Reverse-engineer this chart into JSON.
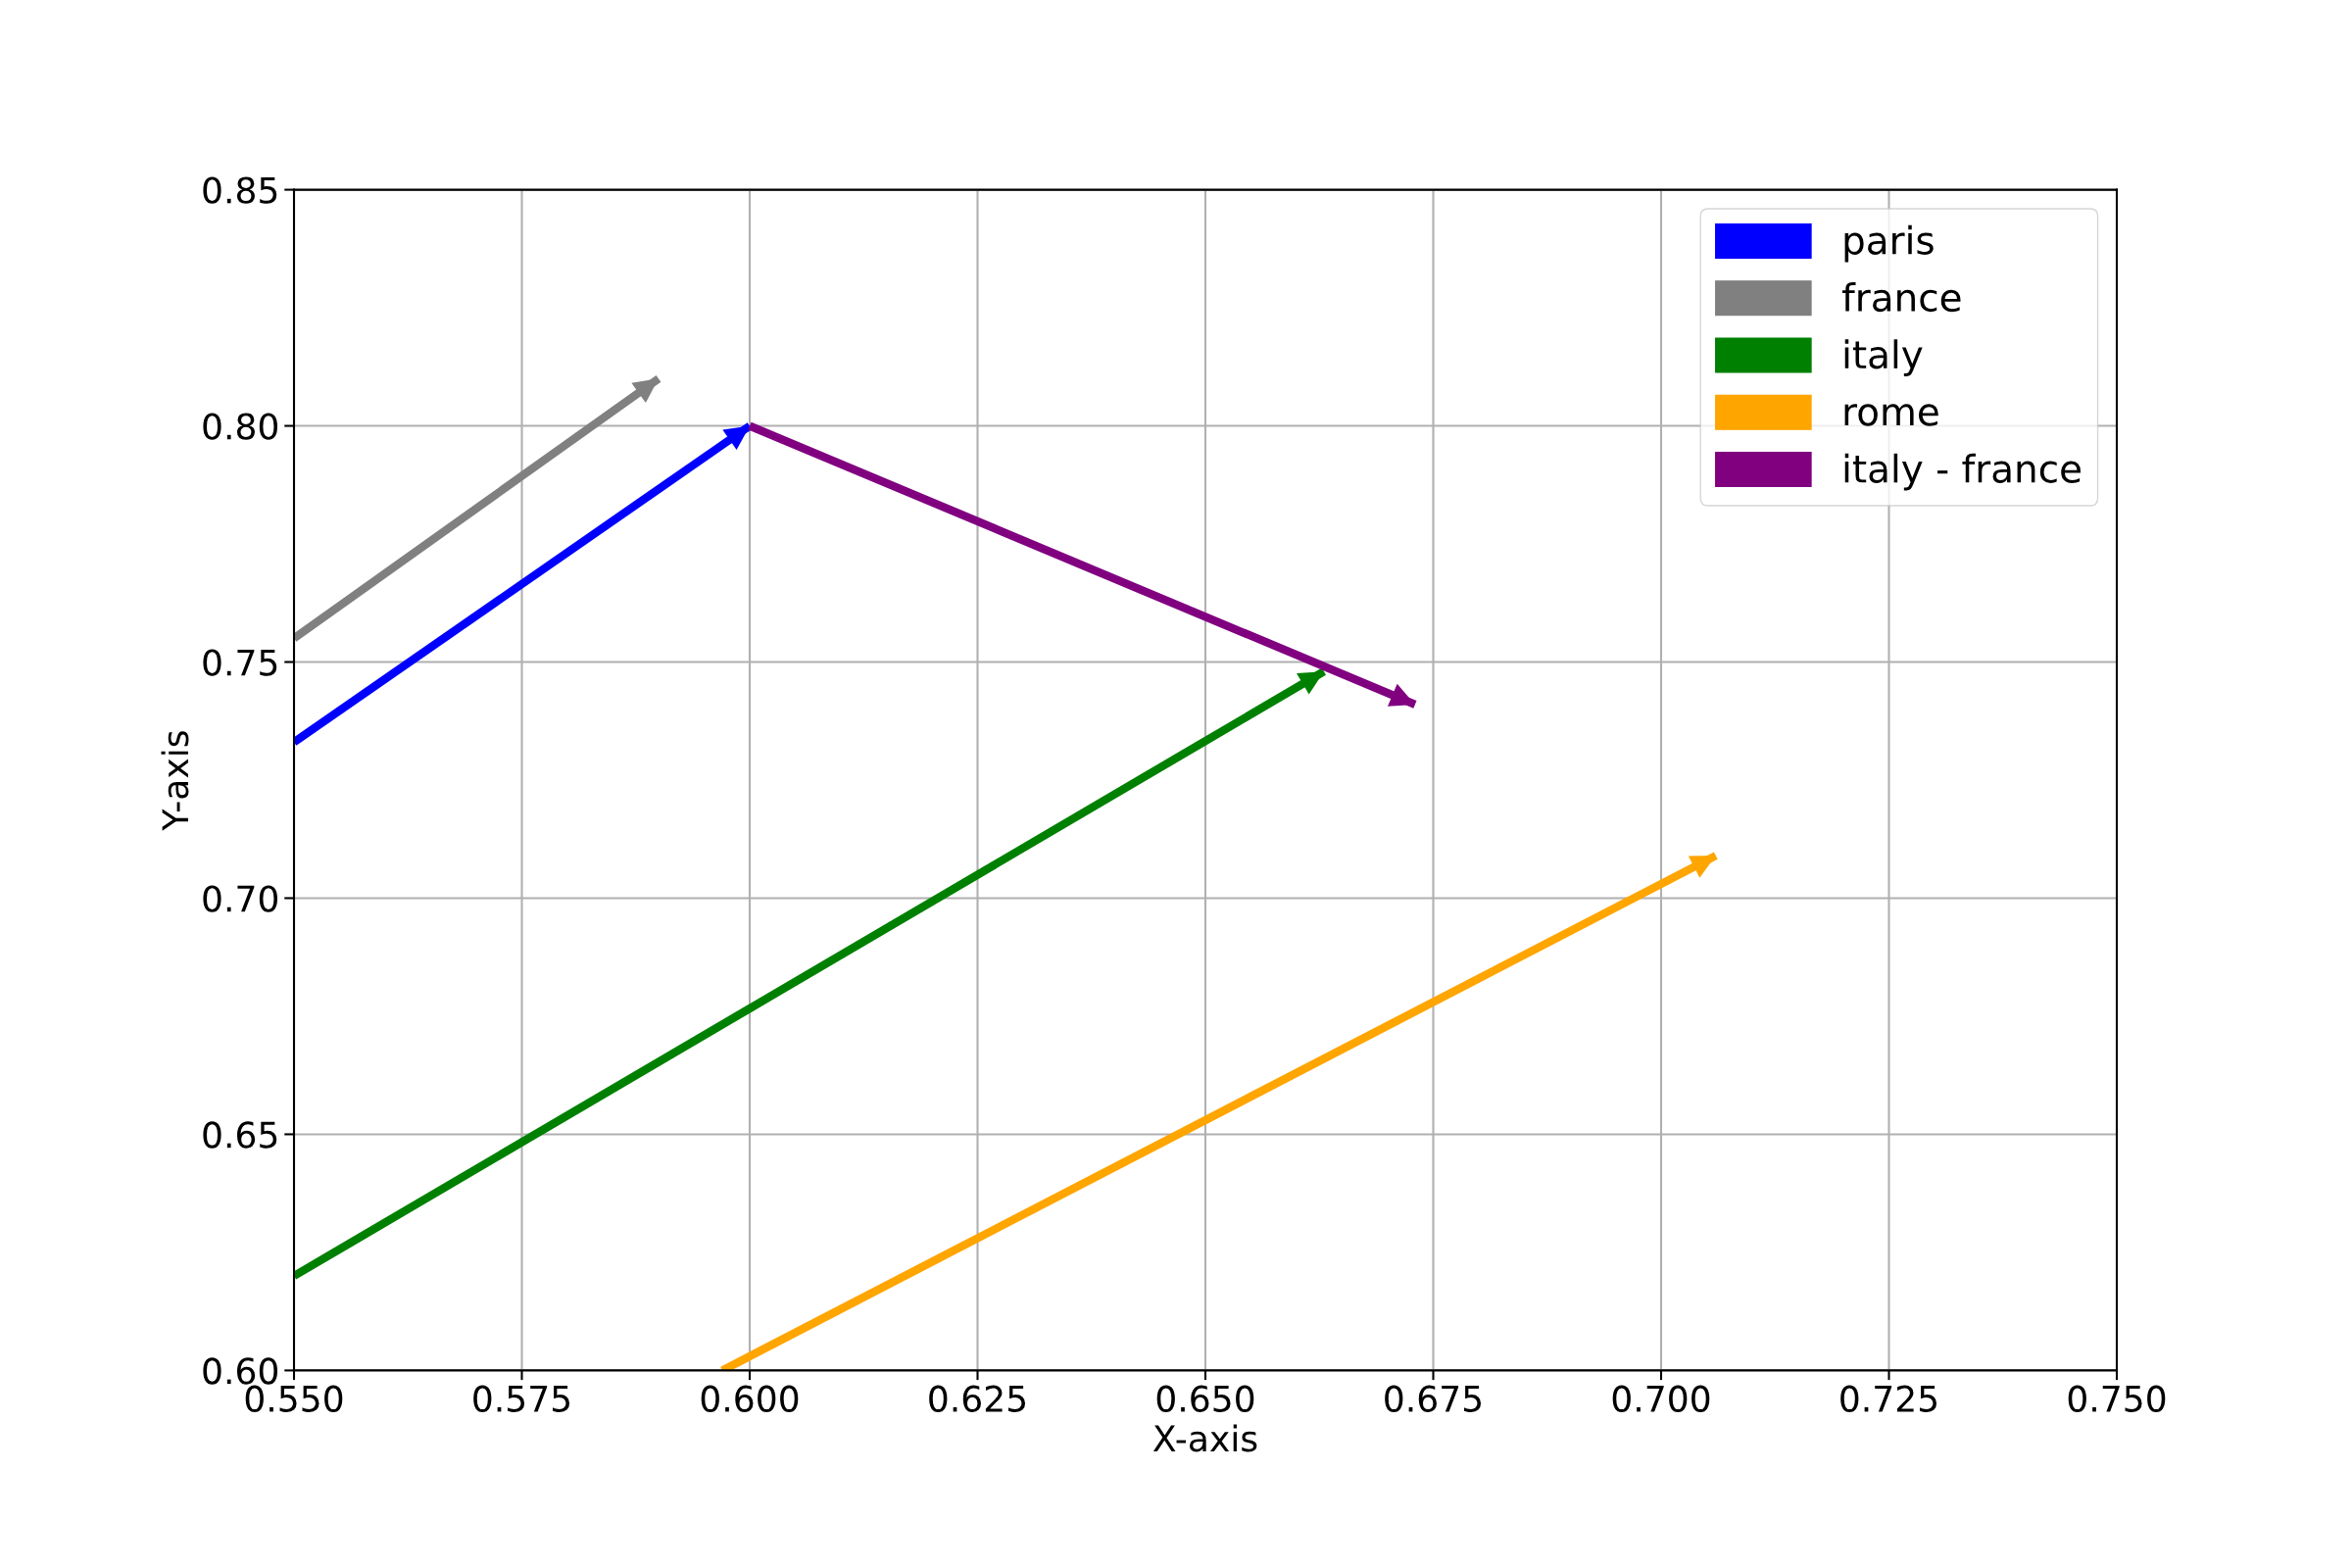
{
  "chart_data": {
    "type": "line",
    "xlabel": "X-axis",
    "ylabel": "Y-axis",
    "series": [
      {
        "name": "paris",
        "color": "#0000ff",
        "x": [
          0.55,
          0.6
        ],
        "values": [
          0.733,
          0.8
        ]
      },
      {
        "name": "france",
        "color": "#808080",
        "x": [
          0.55,
          0.59
        ],
        "values": [
          0.755,
          0.81
        ]
      },
      {
        "name": "italy",
        "color": "#008000",
        "x": [
          0.55,
          0.663
        ],
        "values": [
          0.62,
          0.748
        ]
      },
      {
        "name": "rome",
        "color": "#ffa500",
        "x": [
          0.597,
          0.706
        ],
        "values": [
          0.6,
          0.709
        ]
      },
      {
        "name": "italy - france",
        "color": "#800080",
        "x": [
          0.6,
          0.673
        ],
        "values": [
          0.8,
          0.741
        ]
      }
    ],
    "xlim": [
      0.55,
      0.75
    ],
    "xticks": [
      {
        "value": 0.55,
        "label": "0.550"
      },
      {
        "value": 0.575,
        "label": "0.575"
      },
      {
        "value": 0.6,
        "label": "0.600"
      },
      {
        "value": 0.625,
        "label": "0.625"
      },
      {
        "value": 0.65,
        "label": "0.650"
      },
      {
        "value": 0.675,
        "label": "0.675"
      },
      {
        "value": 0.7,
        "label": "0.700"
      },
      {
        "value": 0.725,
        "label": "0.725"
      },
      {
        "value": 0.75,
        "label": "0.750"
      }
    ],
    "ylim": [
      0.6,
      0.85
    ],
    "yticks": [
      {
        "value": 0.6,
        "label": "0.60"
      },
      {
        "value": 0.65,
        "label": "0.65"
      },
      {
        "value": 0.7,
        "label": "0.70"
      },
      {
        "value": 0.75,
        "label": "0.75"
      },
      {
        "value": 0.8,
        "label": "0.80"
      },
      {
        "value": 0.85,
        "label": "0.85"
      }
    ],
    "grid": true,
    "legend": "top right"
  }
}
